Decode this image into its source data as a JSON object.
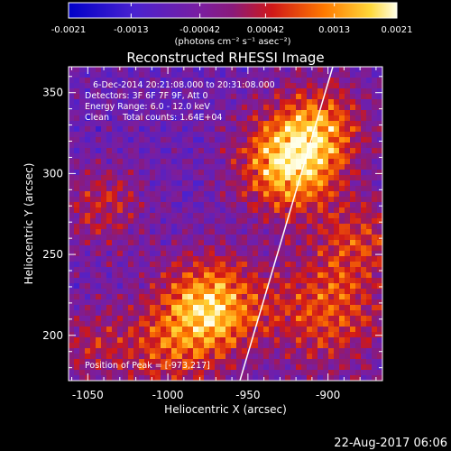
{
  "colorbar": {
    "tick_labels": [
      "-0.0021",
      "-0.0013",
      "-0.00042",
      "0.00042",
      "0.0013",
      "0.0021"
    ],
    "range": [
      -0.0021,
      0.0021
    ],
    "unit_label": "(photons cm⁻² s⁻¹ asec⁻²)"
  },
  "plot": {
    "title": "Reconstructed RHESSI Image",
    "xlabel": "Heliocentric X (arcsec)",
    "ylabel": "Heliocentric Y (arcsec)",
    "x_ticks": [
      "-1050",
      "-1000",
      "-950",
      "-900"
    ],
    "y_ticks": [
      "200",
      "250",
      "300",
      "350"
    ],
    "xlim": [
      -1062,
      -866
    ],
    "ylim": [
      172,
      366
    ],
    "annotations": [
      "6-Dec-2014 20:21:08.000 to 20:31:08.000",
      "Detectors: 3F 6F 7F 9F, Att 0",
      "Energy Range: 6.0 - 12.0 keV",
      "Clean     Total counts: 1.64E+04"
    ],
    "peak_label": "Position of Peak = [-973,217]",
    "peak_position": [
      -973,
      217
    ],
    "limb_line": [
      [
        -955,
        172
      ],
      [
        -897,
        366
      ]
    ]
  },
  "footer": {
    "timestamp": "22-Aug-2017 06:06"
  },
  "colors": {
    "background": "#000000",
    "text": "#ffffff"
  }
}
